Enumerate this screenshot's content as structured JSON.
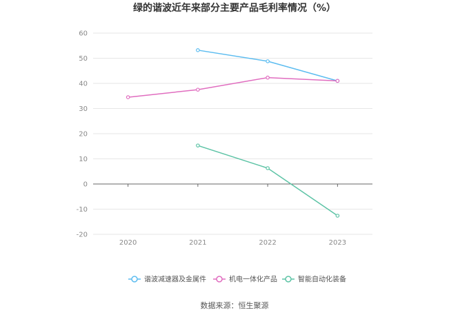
{
  "chart_data": {
    "type": "line",
    "title": "绿的谐波近年来部分主要产品毛利率情况（%）",
    "categories": [
      "2020",
      "2021",
      "2022",
      "2023"
    ],
    "ylim": [
      -20,
      60
    ],
    "yticks": [
      60,
      50,
      40,
      30,
      20,
      10,
      0,
      -10,
      -20
    ],
    "grid": true,
    "legend_position": "bottom-center",
    "series": [
      {
        "name": "谐波减速器及金属件",
        "color": "#5bbcf0",
        "values": [
          null,
          53.2,
          48.8,
          41.0
        ]
      },
      {
        "name": "机电一体化产品",
        "color": "#e06cbf",
        "values": [
          34.5,
          37.5,
          42.3,
          41.0
        ]
      },
      {
        "name": "智能自动化装备",
        "color": "#5cc3a5",
        "values": [
          null,
          15.3,
          6.3,
          -12.6
        ]
      }
    ],
    "source": "数据来源：恒生聚源"
  }
}
